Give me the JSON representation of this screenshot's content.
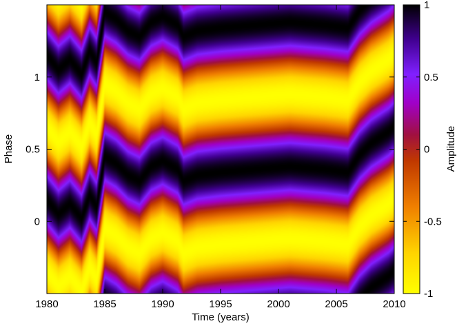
{
  "chart_data": {
    "type": "heatmap",
    "xlabel": "Time (years)",
    "ylabel": "Phase",
    "colorbar_label": "Amplitude",
    "xlim": [
      1980,
      2010
    ],
    "ylim": [
      -0.5,
      1.5
    ],
    "x_ticks": [
      1980,
      1985,
      1990,
      1995,
      2000,
      2005,
      2010
    ],
    "y_ticks": [
      0,
      0.5,
      1
    ],
    "colorbar_range": [
      -1,
      1
    ],
    "colorbar_ticks": [
      1,
      0.5,
      0,
      -0.5,
      -1
    ],
    "colormap": [
      [
        0.0,
        "#ffff00"
      ],
      [
        0.14,
        "#ffd400"
      ],
      [
        0.3,
        "#f08000"
      ],
      [
        0.46,
        "#c03800"
      ],
      [
        0.55,
        "#a01040"
      ],
      [
        0.66,
        "#a000c8"
      ],
      [
        0.76,
        "#8020ff"
      ],
      [
        0.88,
        "#400090"
      ],
      [
        1.0,
        "#000000"
      ]
    ],
    "periodicity": 1,
    "phase_of_max_amplitude": [
      {
        "year": 1980.0,
        "phase": 0.15
      },
      {
        "year": 1981.0,
        "phase": 0.05
      },
      {
        "year": 1982.0,
        "phase": 0.12
      },
      {
        "year": 1983.0,
        "phase": 0.02
      },
      {
        "year": 1983.7,
        "phase": 0.18
      },
      {
        "year": 1984.3,
        "phase": 0.1
      },
      {
        "year": 1985.0,
        "phase": 0.45
      },
      {
        "year": 1986.0,
        "phase": 0.4
      },
      {
        "year": 1987.0,
        "phase": 0.32
      },
      {
        "year": 1988.0,
        "phase": 0.28
      },
      {
        "year": 1989.0,
        "phase": 0.38
      },
      {
        "year": 1990.0,
        "phase": 0.42
      },
      {
        "year": 1991.3,
        "phase": 0.36
      },
      {
        "year": 1991.8,
        "phase": 0.28
      },
      {
        "year": 1993.0,
        "phase": 0.32
      },
      {
        "year": 1995.0,
        "phase": 0.34
      },
      {
        "year": 1998.0,
        "phase": 0.36
      },
      {
        "year": 2001.0,
        "phase": 0.38
      },
      {
        "year": 2004.0,
        "phase": 0.36
      },
      {
        "year": 2006.0,
        "phase": 0.34
      },
      {
        "year": 2007.0,
        "phase": 0.46
      },
      {
        "year": 2008.0,
        "phase": 0.54
      },
      {
        "year": 2009.5,
        "phase": 0.62
      },
      {
        "year": 2010.0,
        "phase": 0.66
      }
    ]
  }
}
